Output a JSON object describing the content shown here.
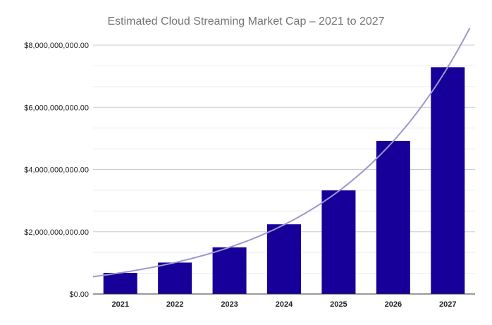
{
  "chart_data": {
    "type": "bar",
    "title": "Estimated Cloud Streaming Market Cap – 2021 to 2027",
    "xlabel": "",
    "ylabel": "",
    "categories": [
      "2021",
      "2022",
      "2023",
      "2024",
      "2025",
      "2026",
      "2027"
    ],
    "values": [
      680000000,
      1010000000,
      1500000000,
      2240000000,
      3330000000,
      4920000000,
      7290000000
    ],
    "ylim": [
      0,
      8000000000
    ],
    "yticks": [
      0,
      2000000000,
      4000000000,
      6000000000,
      8000000000
    ],
    "ytick_labels": [
      "$0.00",
      "$2,000,000,000.00",
      "$4,000,000,000.00",
      "$6,000,000,000.00",
      "$8,000,000,000.00"
    ],
    "grid": true,
    "trendline": {
      "type": "exponential",
      "growth_per_year": 1.485,
      "value_at_2021": 680000000
    },
    "colors": {
      "bar": "#170099",
      "trendline": "#9e95d1",
      "grid": "#d9d9d9",
      "axis": "#333333"
    }
  }
}
